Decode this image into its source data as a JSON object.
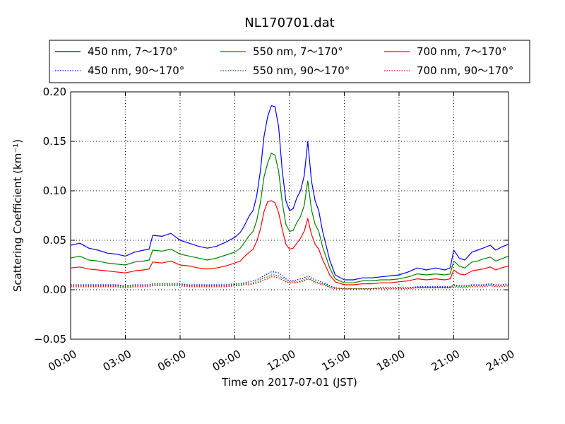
{
  "chart_data": {
    "type": "line",
    "title": "NL170701.dat",
    "xlabel": "Time on 2017-07-01 (JST)",
    "ylabel": "Scattering Coefficient (km⁻¹)",
    "xlim": [
      0,
      24
    ],
    "ylim": [
      -0.05,
      0.2
    ],
    "xtick_labels": [
      "00:00",
      "03:00",
      "06:00",
      "09:00",
      "12:00",
      "15:00",
      "18:00",
      "21:00",
      "24:00"
    ],
    "ytick_labels": [
      "−0.05",
      "0.00",
      "0.05",
      "0.10",
      "0.15",
      "0.20"
    ],
    "grid": true,
    "legend_position": "top, outside plot, 3 columns",
    "x": [
      0,
      0.5,
      1,
      1.5,
      2,
      2.5,
      3,
      3.5,
      4,
      4.3,
      4.5,
      5,
      5.5,
      6,
      6.5,
      7,
      7.5,
      8,
      8.5,
      9,
      9.3,
      9.5,
      9.8,
      10,
      10.2,
      10.4,
      10.6,
      10.8,
      11,
      11.2,
      11.4,
      11.6,
      11.8,
      12,
      12.2,
      12.4,
      12.6,
      12.8,
      13,
      13.2,
      13.4,
      13.6,
      13.8,
      14,
      14.2,
      14.5,
      15,
      15.5,
      16,
      16.5,
      17,
      17.5,
      18,
      18.5,
      19,
      19.5,
      20,
      20.5,
      20.8,
      21,
      21.3,
      21.6,
      22,
      22.3,
      22.6,
      23,
      23.3,
      23.6,
      24
    ],
    "series": [
      {
        "name": "450 nm, 7～170°",
        "color": "#0000ff",
        "style": "solid",
        "values": [
          0.045,
          0.047,
          0.042,
          0.04,
          0.037,
          0.036,
          0.034,
          0.038,
          0.04,
          0.041,
          0.055,
          0.054,
          0.057,
          0.05,
          0.047,
          0.044,
          0.042,
          0.044,
          0.048,
          0.053,
          0.058,
          0.064,
          0.075,
          0.08,
          0.095,
          0.12,
          0.155,
          0.175,
          0.186,
          0.185,
          0.165,
          0.12,
          0.09,
          0.08,
          0.082,
          0.093,
          0.1,
          0.115,
          0.15,
          0.11,
          0.09,
          0.08,
          0.06,
          0.045,
          0.03,
          0.015,
          0.01,
          0.01,
          0.012,
          0.012,
          0.013,
          0.014,
          0.015,
          0.018,
          0.022,
          0.02,
          0.022,
          0.02,
          0.022,
          0.04,
          0.032,
          0.03,
          0.038,
          0.04,
          0.042,
          0.045,
          0.04,
          0.043,
          0.046
        ]
      },
      {
        "name": "450 nm, 90～170°",
        "color": "#0000ff",
        "style": "dotted",
        "values": [
          0.005,
          0.005,
          0.005,
          0.005,
          0.005,
          0.005,
          0.004,
          0.005,
          0.005,
          0.005,
          0.006,
          0.006,
          0.006,
          0.006,
          0.005,
          0.005,
          0.005,
          0.005,
          0.005,
          0.006,
          0.006,
          0.007,
          0.008,
          0.009,
          0.01,
          0.012,
          0.014,
          0.016,
          0.018,
          0.018,
          0.017,
          0.014,
          0.011,
          0.009,
          0.009,
          0.01,
          0.011,
          0.012,
          0.014,
          0.012,
          0.01,
          0.009,
          0.007,
          0.006,
          0.004,
          0.002,
          0.001,
          0.001,
          0.001,
          0.001,
          0.002,
          0.002,
          0.002,
          0.002,
          0.003,
          0.003,
          0.003,
          0.003,
          0.003,
          0.005,
          0.004,
          0.004,
          0.005,
          0.005,
          0.005,
          0.006,
          0.005,
          0.005,
          0.006
        ]
      },
      {
        "name": "550 nm, 7～170°",
        "color": "#008000",
        "style": "solid",
        "values": [
          0.032,
          0.034,
          0.03,
          0.029,
          0.027,
          0.026,
          0.025,
          0.028,
          0.029,
          0.03,
          0.04,
          0.039,
          0.041,
          0.036,
          0.034,
          0.032,
          0.03,
          0.032,
          0.035,
          0.038,
          0.042,
          0.047,
          0.055,
          0.059,
          0.07,
          0.088,
          0.114,
          0.128,
          0.138,
          0.136,
          0.12,
          0.088,
          0.066,
          0.059,
          0.06,
          0.068,
          0.074,
          0.085,
          0.11,
          0.081,
          0.066,
          0.059,
          0.044,
          0.033,
          0.022,
          0.011,
          0.007,
          0.007,
          0.009,
          0.009,
          0.01,
          0.01,
          0.011,
          0.013,
          0.016,
          0.015,
          0.016,
          0.015,
          0.016,
          0.029,
          0.024,
          0.022,
          0.028,
          0.029,
          0.031,
          0.033,
          0.029,
          0.031,
          0.034
        ]
      },
      {
        "name": "550 nm, 90～170°",
        "color": "#008000",
        "style": "dotted",
        "values": [
          0.004,
          0.004,
          0.004,
          0.004,
          0.004,
          0.004,
          0.003,
          0.004,
          0.004,
          0.004,
          0.005,
          0.005,
          0.005,
          0.005,
          0.004,
          0.004,
          0.004,
          0.004,
          0.004,
          0.005,
          0.005,
          0.006,
          0.006,
          0.007,
          0.008,
          0.01,
          0.012,
          0.013,
          0.015,
          0.015,
          0.014,
          0.012,
          0.009,
          0.008,
          0.008,
          0.008,
          0.009,
          0.01,
          0.012,
          0.01,
          0.008,
          0.007,
          0.006,
          0.005,
          0.003,
          0.002,
          0.001,
          0.001,
          0.001,
          0.001,
          0.002,
          0.002,
          0.002,
          0.002,
          0.002,
          0.002,
          0.002,
          0.002,
          0.002,
          0.004,
          0.003,
          0.003,
          0.004,
          0.004,
          0.004,
          0.005,
          0.004,
          0.004,
          0.005
        ]
      },
      {
        "name": "700 nm, 7～170°",
        "color": "#ff0000",
        "style": "solid",
        "values": [
          0.022,
          0.023,
          0.021,
          0.02,
          0.019,
          0.018,
          0.017,
          0.019,
          0.02,
          0.021,
          0.028,
          0.027,
          0.029,
          0.025,
          0.024,
          0.022,
          0.021,
          0.022,
          0.024,
          0.027,
          0.029,
          0.033,
          0.038,
          0.041,
          0.049,
          0.061,
          0.079,
          0.089,
          0.09,
          0.088,
          0.078,
          0.061,
          0.046,
          0.041,
          0.042,
          0.047,
          0.052,
          0.059,
          0.072,
          0.056,
          0.046,
          0.041,
          0.031,
          0.023,
          0.015,
          0.008,
          0.005,
          0.005,
          0.006,
          0.006,
          0.007,
          0.007,
          0.008,
          0.009,
          0.011,
          0.01,
          0.011,
          0.01,
          0.011,
          0.02,
          0.016,
          0.015,
          0.019,
          0.02,
          0.021,
          0.023,
          0.02,
          0.022,
          0.024
        ]
      },
      {
        "name": "700 nm, 90～170°",
        "color": "#ff0000",
        "style": "dotted",
        "values": [
          0.003,
          0.003,
          0.003,
          0.003,
          0.003,
          0.003,
          0.002,
          0.003,
          0.003,
          0.003,
          0.004,
          0.004,
          0.004,
          0.004,
          0.003,
          0.003,
          0.003,
          0.003,
          0.003,
          0.004,
          0.004,
          0.005,
          0.005,
          0.006,
          0.007,
          0.008,
          0.01,
          0.011,
          0.013,
          0.013,
          0.012,
          0.01,
          0.008,
          0.007,
          0.007,
          0.007,
          0.008,
          0.009,
          0.011,
          0.009,
          0.007,
          0.006,
          0.005,
          0.004,
          0.002,
          0.001,
          0.001,
          0.001,
          0.001,
          0.001,
          0.001,
          0.001,
          0.001,
          0.001,
          0.002,
          0.002,
          0.002,
          0.002,
          0.002,
          0.003,
          0.002,
          0.002,
          0.003,
          0.003,
          0.003,
          0.004,
          0.003,
          0.003,
          0.004
        ]
      }
    ]
  }
}
